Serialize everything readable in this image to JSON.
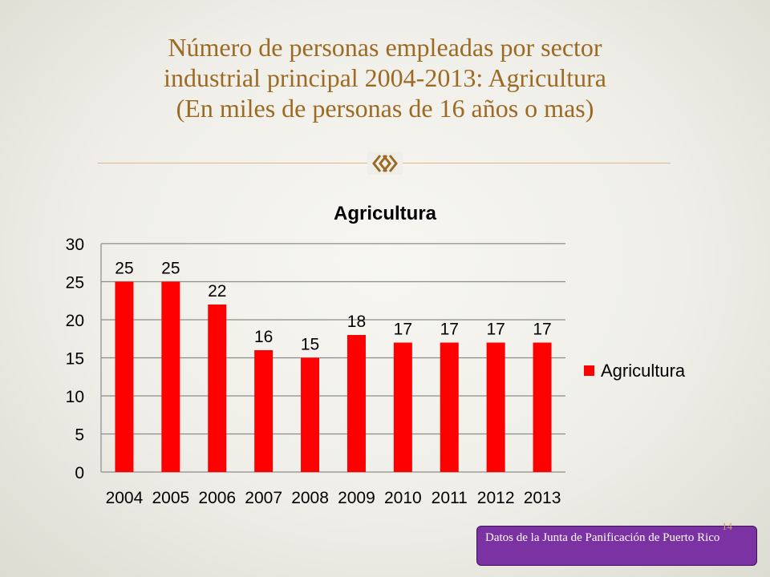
{
  "slide": {
    "title_lines": [
      "Número de personas empleadas por sector",
      "industrial principal 2004-2013: Agricultura",
      "(En miles de personas de 16 años o mas)"
    ],
    "ornament_icon": "double-arrow-chevron-icon",
    "accent_color": "#9c6a22",
    "source_note": "Datos de la Junta de Panificación de Puerto Rico",
    "source_box_color": "#7b32a2",
    "page_number": "14"
  },
  "chart_data": {
    "type": "bar",
    "title": "Agricultura",
    "categories": [
      "2004",
      "2005",
      "2006",
      "2007",
      "2008",
      "2009",
      "2010",
      "2011",
      "2012",
      "2013"
    ],
    "series": [
      {
        "name": "Agricultura",
        "values": [
          25,
          25,
          22,
          16,
          15,
          18,
          17,
          17,
          17,
          17
        ],
        "color": "#ff0000"
      }
    ],
    "data_labels": true,
    "ylim": [
      0,
      30
    ],
    "yticks": [
      0,
      5,
      10,
      15,
      20,
      25,
      30
    ],
    "grid": true,
    "legend_position": "right"
  }
}
